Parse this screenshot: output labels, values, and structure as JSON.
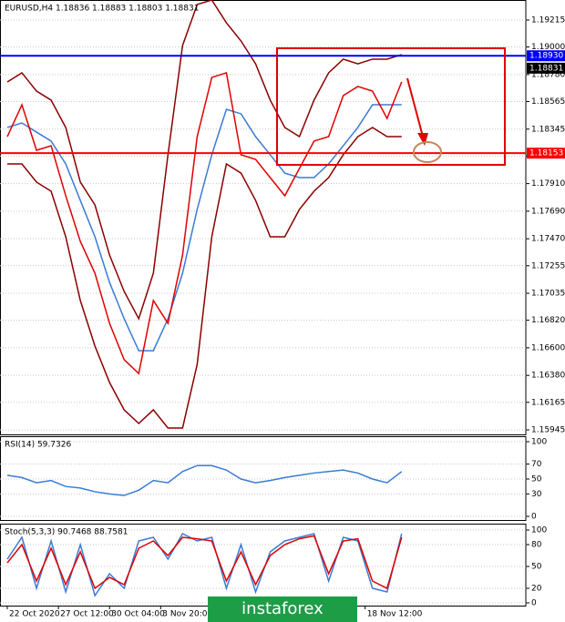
{
  "chart_data": [
    {
      "type": "line",
      "title": "EURUSD,H4  1.18836 1.18883 1.18803 1.18831",
      "x": [
        0,
        1,
        2,
        3,
        4,
        5,
        6,
        7,
        8,
        9,
        10,
        11,
        12,
        13,
        14,
        15,
        16,
        17,
        18,
        19,
        20,
        21,
        22,
        23,
        24,
        25,
        26,
        27
      ],
      "xlim": [
        -0.5,
        35.5
      ],
      "ylim": [
        1.15909,
        1.19375
      ],
      "yticks": [
        1.19215,
        {
          "value": 1.19,
          "label": "1.19000"
        },
        {
          "value": 1.1878,
          "label": "1.18780"
        },
        1.18565,
        1.18345,
        {
          "value": 1.1813,
          "label": "1.18130"
        },
        {
          "value": 1.1791,
          "label": "1.17910"
        },
        {
          "value": 1.1769,
          "label": "1.17690"
        },
        {
          "value": 1.1747,
          "label": "1.17470"
        },
        1.17255,
        1.17035,
        {
          "value": 1.1682,
          "label": "1.16820"
        },
        {
          "value": 1.166,
          "label": "1.16600"
        },
        {
          "value": 1.1638,
          "label": "1.16380"
        },
        1.16165,
        1.15945
      ],
      "grid": true,
      "series": [
        {
          "color": "#8b0000",
          "values": [
            1.18721,
            1.18794,
            1.18648,
            1.18576,
            1.18358,
            1.17922,
            1.1774,
            1.1734,
            1.1705,
            1.16832,
            1.17195,
            1.1814,
            1.19012,
            1.19339,
            1.19375,
            1.19193,
            1.19048,
            1.18866,
            1.18576,
            1.18358,
            1.18285,
            1.18576,
            1.18794,
            1.18903,
            1.18866,
            1.18903,
            1.18903,
            1.18939
          ]
        },
        {
          "color": "#8b0000",
          "values": [
            1.18067,
            1.18067,
            1.17922,
            1.17849,
            1.17486,
            1.16977,
            1.16614,
            1.16323,
            1.16105,
            1.15996,
            1.16105,
            1.1596,
            1.1596,
            1.16468,
            1.17486,
            1.18067,
            1.17994,
            1.17776,
            1.17486,
            1.17486,
            1.17704,
            1.17849,
            1.17958,
            1.1814,
            1.18285,
            1.18358,
            1.18285,
            1.18285
          ]
        },
        {
          "color": "#3a7bd5",
          "values": [
            1.18358,
            1.18394,
            1.18321,
            1.18249,
            1.18067,
            1.17776,
            1.17486,
            1.17122,
            1.16832,
            1.16577,
            1.16577,
            1.16832,
            1.17195,
            1.17704,
            1.1814,
            1.18503,
            1.18467,
            1.18285,
            1.1814,
            1.17994,
            1.17958,
            1.17958,
            1.18067,
            1.18212,
            1.18358,
            1.18539,
            1.18539,
            1.18539
          ]
        },
        {
          "color": "#e00000",
          "values": [
            1.18285,
            1.18539,
            1.18176,
            1.18212,
            1.17813,
            1.17449,
            1.17195,
            1.16795,
            1.16505,
            1.16395,
            1.16977,
            1.16795,
            1.1734,
            1.18285,
            1.18757,
            1.18794,
            1.1814,
            1.18103,
            1.17958,
            1.17813,
            1.18031,
            1.18249,
            1.18285,
            1.18612,
            1.18685,
            1.18648,
            1.1843,
            1.18721
          ]
        }
      ],
      "hlines": [
        {
          "value": 1.1893,
          "label": "1.18930",
          "color": "#0000ff"
        },
        {
          "value": 1.18153,
          "color": "#ff0000"
        }
      ],
      "last_price": 1.18831
    },
    {
      "type": "line",
      "title": "RSI(14) 59.7326",
      "x": [
        0,
        1,
        2,
        3,
        4,
        5,
        6,
        7,
        8,
        9,
        10,
        11,
        12,
        13,
        14,
        15,
        16,
        17,
        18,
        19,
        20,
        21,
        22,
        23,
        24,
        25,
        26,
        27
      ],
      "xlim": [
        -0.5,
        35.5
      ],
      "ylim": [
        0,
        100
      ],
      "yticks": [
        100,
        70,
        50,
        30,
        0
      ],
      "series": [
        {
          "color": "#3a7bd5",
          "values": [
            55,
            52,
            45,
            48,
            40,
            38,
            33,
            30,
            28,
            35,
            48,
            45,
            60,
            68,
            68,
            62,
            50,
            45,
            48,
            52,
            55,
            58,
            60,
            62,
            58,
            50,
            45,
            60
          ]
        }
      ]
    },
    {
      "type": "line",
      "title": "Stoch(5,3,3) 90.7468 88.7581",
      "x": [
        0,
        1,
        2,
        3,
        4,
        5,
        6,
        7,
        8,
        9,
        10,
        11,
        12,
        13,
        14,
        15,
        16,
        17,
        18,
        19,
        20,
        21,
        22,
        23,
        24,
        25,
        26,
        27
      ],
      "xlim": [
        -0.5,
        35.5
      ],
      "ylim": [
        0,
        100
      ],
      "yticks": [
        100,
        80,
        50,
        20,
        0
      ],
      "xticks": [
        {
          "value": 0,
          "label": "22 Oct 2020"
        },
        {
          "value": 3.5,
          "label": "27 Oct 12:00"
        },
        {
          "value": 7,
          "label": "30 Oct 04:00"
        },
        {
          "value": 10.5,
          "label": "3 Nov 20:00"
        },
        {
          "value": 24.5,
          "label": "18 Nov 12:00"
        }
      ],
      "series": [
        {
          "color": "#3a7bd5",
          "values": [
            60,
            90,
            20,
            85,
            15,
            80,
            10,
            40,
            20,
            85,
            90,
            60,
            95,
            85,
            90,
            20,
            80,
            15,
            70,
            85,
            90,
            95,
            30,
            90,
            85,
            20,
            15,
            95
          ]
        },
        {
          "color": "#e00000",
          "values": [
            55,
            80,
            30,
            75,
            25,
            70,
            20,
            35,
            25,
            75,
            85,
            65,
            90,
            88,
            85,
            30,
            70,
            25,
            65,
            80,
            88,
            92,
            40,
            85,
            88,
            30,
            20,
            90
          ]
        }
      ],
      "watermark": "instaforex"
    }
  ]
}
